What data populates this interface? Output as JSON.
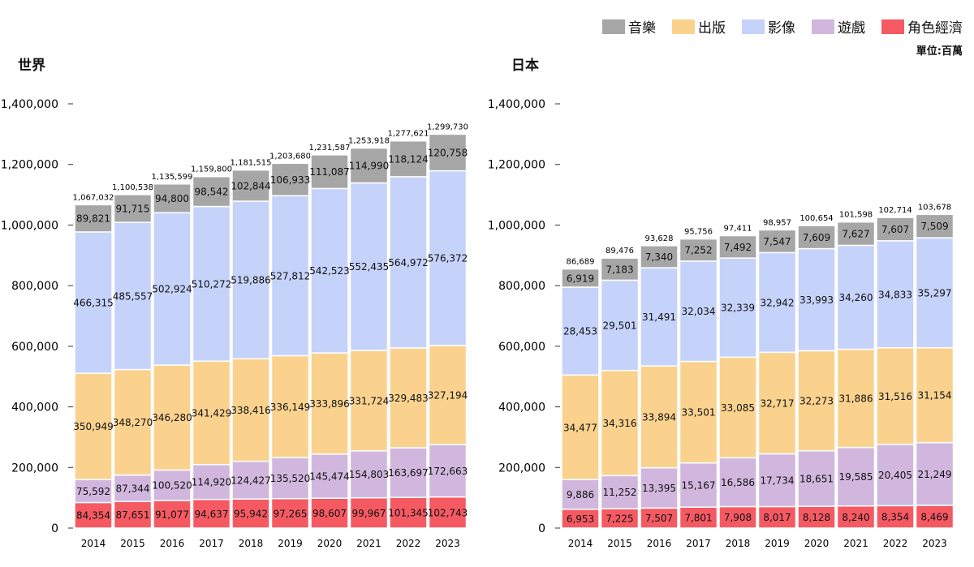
{
  "legend": {
    "items": [
      {
        "label": "音樂",
        "color": "#a6a6a6"
      },
      {
        "label": "出版",
        "color": "#fad28e"
      },
      {
        "label": "影像",
        "color": "#c5d2fa"
      },
      {
        "label": "遊戲",
        "color": "#d1b7de"
      },
      {
        "label": "角色經濟",
        "color": "#f55a63"
      }
    ],
    "unit": "單位:百萬"
  },
  "chart_data": [
    {
      "type": "bar",
      "stacked": true,
      "title": "世界",
      "categories": [
        "2014",
        "2015",
        "2016",
        "2017",
        "2018",
        "2019",
        "2020",
        "2021",
        "2022",
        "2023"
      ],
      "ylim": [
        0,
        1400000
      ],
      "yticks": [
        "0",
        "200,000",
        "400,000",
        "600,000",
        "800,000",
        "1,000,000",
        "1,200,000",
        "1,400,000"
      ],
      "series": [
        {
          "name": "角色經濟",
          "values": [
            84354,
            87651,
            91077,
            94637,
            95942,
            97265,
            98607,
            99967,
            101345,
            102743
          ],
          "labels": [
            "84,354",
            "87,651",
            "91,077",
            "94,637",
            "95,942",
            "97,265",
            "98,607",
            "99,967",
            "101,345",
            "102,743"
          ]
        },
        {
          "name": "遊戲",
          "values": [
            75592,
            87344,
            100520,
            114920,
            124427,
            135520,
            145474,
            154803,
            163697,
            172663
          ],
          "labels": [
            "75,592",
            "87,344",
            "100,520",
            "114,920",
            "124,427",
            "135,520",
            "145,474",
            "154,803",
            "163,697",
            "172,663"
          ]
        },
        {
          "name": "出版",
          "values": [
            350949,
            348270,
            346280,
            341429,
            338416,
            336149,
            333896,
            331724,
            329483,
            327194
          ],
          "labels": [
            "350,949",
            "348,270",
            "346,280",
            "341,429",
            "338,416",
            "336,149",
            "333,896",
            "331,724",
            "329,483",
            "327,194"
          ]
        },
        {
          "name": "影像",
          "values": [
            466315,
            485557,
            502924,
            510272,
            519886,
            527812,
            542523,
            552435,
            564972,
            576372
          ],
          "labels": [
            "466,315",
            "485,557",
            "502,924",
            "510,272",
            "519,886",
            "527,812",
            "542,523",
            "552,435",
            "564,972",
            "576,372"
          ]
        },
        {
          "name": "音樂",
          "values": [
            89821,
            91715,
            94800,
            98542,
            102844,
            106933,
            111087,
            114990,
            118124,
            120758
          ],
          "labels": [
            "89,821",
            "91,715",
            "94,800",
            "98,542",
            "102,844",
            "106,933",
            "111,087",
            "114,990",
            "118,124",
            "120,758"
          ]
        }
      ],
      "totals": [
        1067032,
        1100538,
        1135599,
        1159800,
        1181515,
        1203680,
        1231587,
        1253918,
        1277621,
        1299730
      ],
      "total_labels": [
        "1,067,032",
        "1,100,538",
        "1,135,599",
        "1,159,800",
        "1,181,515",
        "1,203,680",
        "1,231,587",
        "1,253,918",
        "1,277,621",
        "1,299,730"
      ]
    },
    {
      "type": "bar",
      "stacked": true,
      "title": "日本",
      "note": "bars drawn on the same visual scale as the world chart (axis labels shared)",
      "categories": [
        "2014",
        "2015",
        "2016",
        "2017",
        "2018",
        "2019",
        "2020",
        "2021",
        "2022",
        "2023"
      ],
      "ylim": [
        0,
        1400000
      ],
      "yticks": [
        "0",
        "200,000",
        "400,000",
        "600,000",
        "800,000",
        "1,000,000",
        "1,200,000",
        "1,400,000"
      ],
      "series": [
        {
          "name": "角色經濟",
          "values": [
            6953,
            7225,
            7507,
            7801,
            7908,
            8017,
            8128,
            8240,
            8354,
            8469
          ],
          "labels": [
            "6,953",
            "7,225",
            "7,507",
            "7,801",
            "7,908",
            "8,017",
            "8,128",
            "8,240",
            "8,354",
            "8,469"
          ],
          "display_values": [
            62000,
            64000,
            66000,
            69000,
            71000,
            71000,
            72000,
            73000,
            74000,
            75000
          ]
        },
        {
          "name": "遊戲",
          "values": [
            9886,
            11252,
            13395,
            15167,
            16586,
            17734,
            18651,
            19585,
            20405,
            21249
          ],
          "labels": [
            "9,886",
            "11,252",
            "13,395",
            "15,167",
            "16,586",
            "17,734",
            "18,651",
            "19,585",
            "20,405",
            "21,249"
          ],
          "display_values": [
            98000,
            109000,
            133000,
            146000,
            161000,
            174000,
            183000,
            193000,
            202000,
            207000
          ]
        },
        {
          "name": "出版",
          "values": [
            34477,
            34316,
            33894,
            33501,
            33085,
            32717,
            32273,
            31886,
            31516,
            31154
          ],
          "labels": [
            "34,477",
            "34,316",
            "33,894",
            "33,501",
            "33,085",
            "32,717",
            "32,273",
            "31,886",
            "31,516",
            "31,154"
          ],
          "display_values": [
            345000,
            347000,
            336000,
            335000,
            332000,
            335000,
            330000,
            324000,
            319000,
            313000
          ]
        },
        {
          "name": "影像",
          "values": [
            28453,
            29501,
            31491,
            32034,
            32339,
            32942,
            33993,
            34260,
            34833,
            35297
          ],
          "labels": [
            "28,453",
            "29,501",
            "31,491",
            "32,034",
            "32,339",
            "32,942",
            "33,993",
            "34,260",
            "34,833",
            "35,297"
          ],
          "display_values": [
            290000,
            298000,
            324000,
            331000,
            327000,
            329000,
            337000,
            343000,
            353000,
            363000
          ]
        },
        {
          "name": "音樂",
          "values": [
            6919,
            7183,
            7340,
            7252,
            7492,
            7547,
            7609,
            7627,
            7607,
            7509
          ],
          "labels": [
            "6,919",
            "7,183",
            "7,340",
            "7,252",
            "7,492",
            "7,547",
            "7,609",
            "7,627",
            "7,607",
            "7,509"
          ],
          "display_values": [
            60000,
            73000,
            73000,
            73000,
            74000,
            75000,
            76000,
            77000,
            77000,
            77000
          ]
        }
      ],
      "totals": [
        86689,
        89476,
        93628,
        95756,
        97411,
        98957,
        100654,
        101598,
        102714,
        103678
      ],
      "total_labels": [
        "86,689",
        "89,476",
        "93,628",
        "95,756",
        "97,411",
        "98,957",
        "100,654",
        "101,598",
        "102,714",
        "103,678"
      ]
    }
  ]
}
